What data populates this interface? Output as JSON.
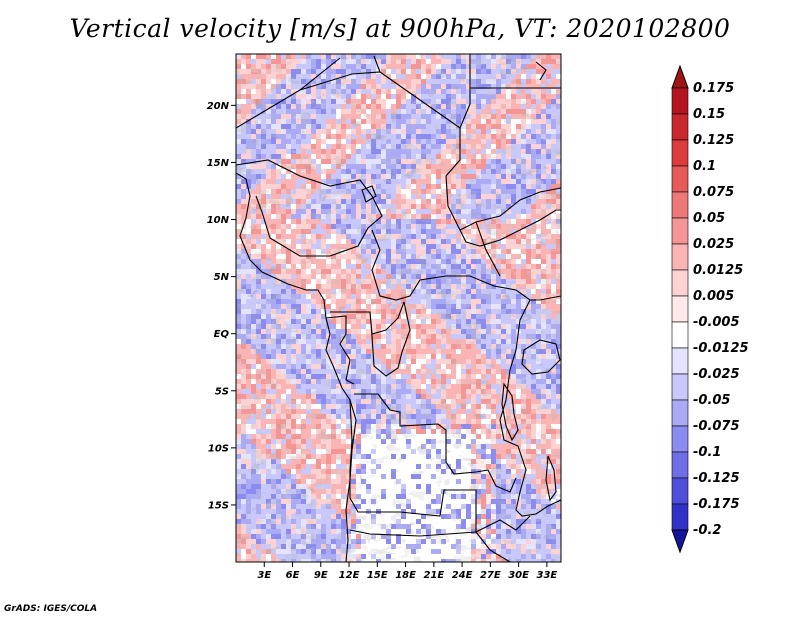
{
  "title": "Vertical velocity [m/s] at 900hPa, VT: 2020102800",
  "credit": "GrADS: IGES/COLA",
  "map": {
    "lon_range": [
      0,
      34.5
    ],
    "lat_range": [
      -20,
      24.5
    ],
    "lat_ticks": [
      {
        "value": 20,
        "label": "20N"
      },
      {
        "value": 15,
        "label": "15N"
      },
      {
        "value": 10,
        "label": "10N"
      },
      {
        "value": 5,
        "label": "5N"
      },
      {
        "value": 0,
        "label": "EQ"
      },
      {
        "value": -5,
        "label": "5S"
      },
      {
        "value": -10,
        "label": "10S"
      },
      {
        "value": -15,
        "label": "15S"
      }
    ],
    "lon_ticks": [
      {
        "value": 3,
        "label": "3E"
      },
      {
        "value": 6,
        "label": "6E"
      },
      {
        "value": 9,
        "label": "9E"
      },
      {
        "value": 12,
        "label": "12E"
      },
      {
        "value": 15,
        "label": "15E"
      },
      {
        "value": 18,
        "label": "18E"
      },
      {
        "value": 21,
        "label": "21E"
      },
      {
        "value": 24,
        "label": "24E"
      },
      {
        "value": 27,
        "label": "27E"
      },
      {
        "value": 30,
        "label": "30E"
      },
      {
        "value": 33,
        "label": "33E"
      }
    ]
  },
  "colorbar": {
    "levels": [
      {
        "label": "0.175",
        "color": "#b4141e"
      },
      {
        "label": "0.15",
        "color": "#c8282d"
      },
      {
        "label": "0.125",
        "color": "#dc3c3c"
      },
      {
        "label": "0.1",
        "color": "#e65a5a"
      },
      {
        "label": "0.075",
        "color": "#ee7878"
      },
      {
        "label": "0.05",
        "color": "#f59696"
      },
      {
        "label": "0.025",
        "color": "#fab4b4"
      },
      {
        "label": "0.0125",
        "color": "#fdd2d2"
      },
      {
        "label": "0.005",
        "color": "#ffe9e9"
      },
      {
        "label": "-0.005",
        "color": "#ffffff"
      },
      {
        "label": "-0.0125",
        "color": "#e4e4ff"
      },
      {
        "label": "-0.025",
        "color": "#c8c8fa"
      },
      {
        "label": "-0.05",
        "color": "#aaaaf5"
      },
      {
        "label": "-0.075",
        "color": "#8c8cf0"
      },
      {
        "label": "-0.1",
        "color": "#6e6ee6"
      },
      {
        "label": "-0.125",
        "color": "#5050dc"
      },
      {
        "label": "-0.175",
        "color": "#3232c8"
      },
      {
        "label": "-0.2",
        "color": "#1e1eb4"
      }
    ],
    "top_color": "#a01414",
    "bottom_color": "#1414a0"
  }
}
